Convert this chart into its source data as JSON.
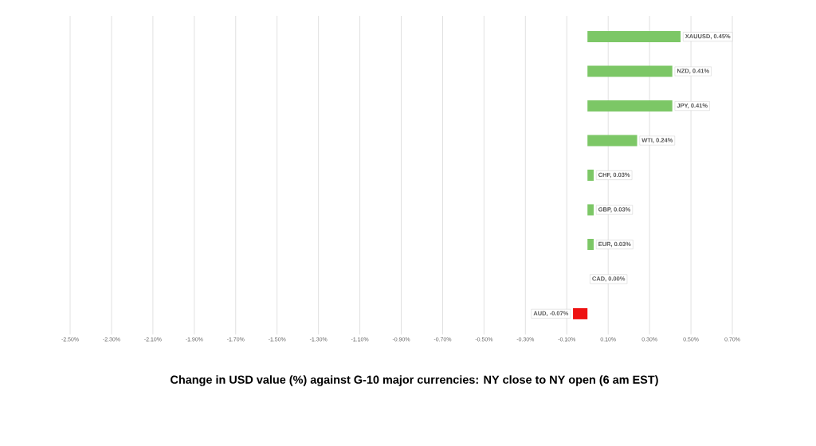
{
  "chart_data": {
    "type": "bar",
    "orientation": "horizontal",
    "title": "Change in  USD value (%)  against  G-10 major currencies:  NY close to NY open  (6 am EST)",
    "categories": [
      null,
      null,
      null,
      null,
      null,
      null,
      null,
      null,
      null
    ],
    "values": [
      0.45,
      0.41,
      0.41,
      0.24,
      0.03,
      0.03,
      0.03,
      0.0,
      -0.07
    ],
    "colors": [
      "#7cc766",
      "#7cc766",
      "#7cc766",
      "#7cc766",
      "#7cc766",
      "#7cc766",
      "#7cc766",
      "#7cc766",
      "#ee1111"
    ],
    "value_labels": [
      "XAUUSD, 0.45%",
      "NZD, 0.41%",
      "JPY, 0.41%",
      "WTI, 0.24%",
      "CHF, 0.03%",
      "GBP, 0.03%",
      "EUR, 0.03%",
      "CAD, 0.00%",
      "AUD, -0.07%"
    ],
    "xlim": [
      -2.5,
      0.7
    ],
    "xticks": [
      {
        "value": -2.5,
        "label": "-2.50%"
      },
      {
        "value": -2.3,
        "label": "-2.30%"
      },
      {
        "value": -2.1,
        "label": "-2.10%"
      },
      {
        "value": -1.9,
        "label": "-1.90%"
      },
      {
        "value": -1.7,
        "label": "-1.70%"
      },
      {
        "value": -1.5,
        "label": "-1.50%"
      },
      {
        "value": -1.3,
        "label": "-1.30%"
      },
      {
        "value": -1.1,
        "label": "-1.10%"
      },
      {
        "value": -0.9,
        "label": "-0.90%"
      },
      {
        "value": -0.7,
        "label": "-0.70%"
      },
      {
        "value": -0.5,
        "label": "-0.50%"
      },
      {
        "value": -0.3,
        "label": "-0.30%"
      },
      {
        "value": -0.1,
        "label": "-0.10%"
      },
      {
        "value": 0.1,
        "label": "0.10%"
      },
      {
        "value": 0.3,
        "label": "0.30%"
      },
      {
        "value": 0.5,
        "label": "0.50%"
      },
      {
        "value": 0.7,
        "label": "0.70%"
      }
    ],
    "grid": "x",
    "tick_labels": "x"
  }
}
